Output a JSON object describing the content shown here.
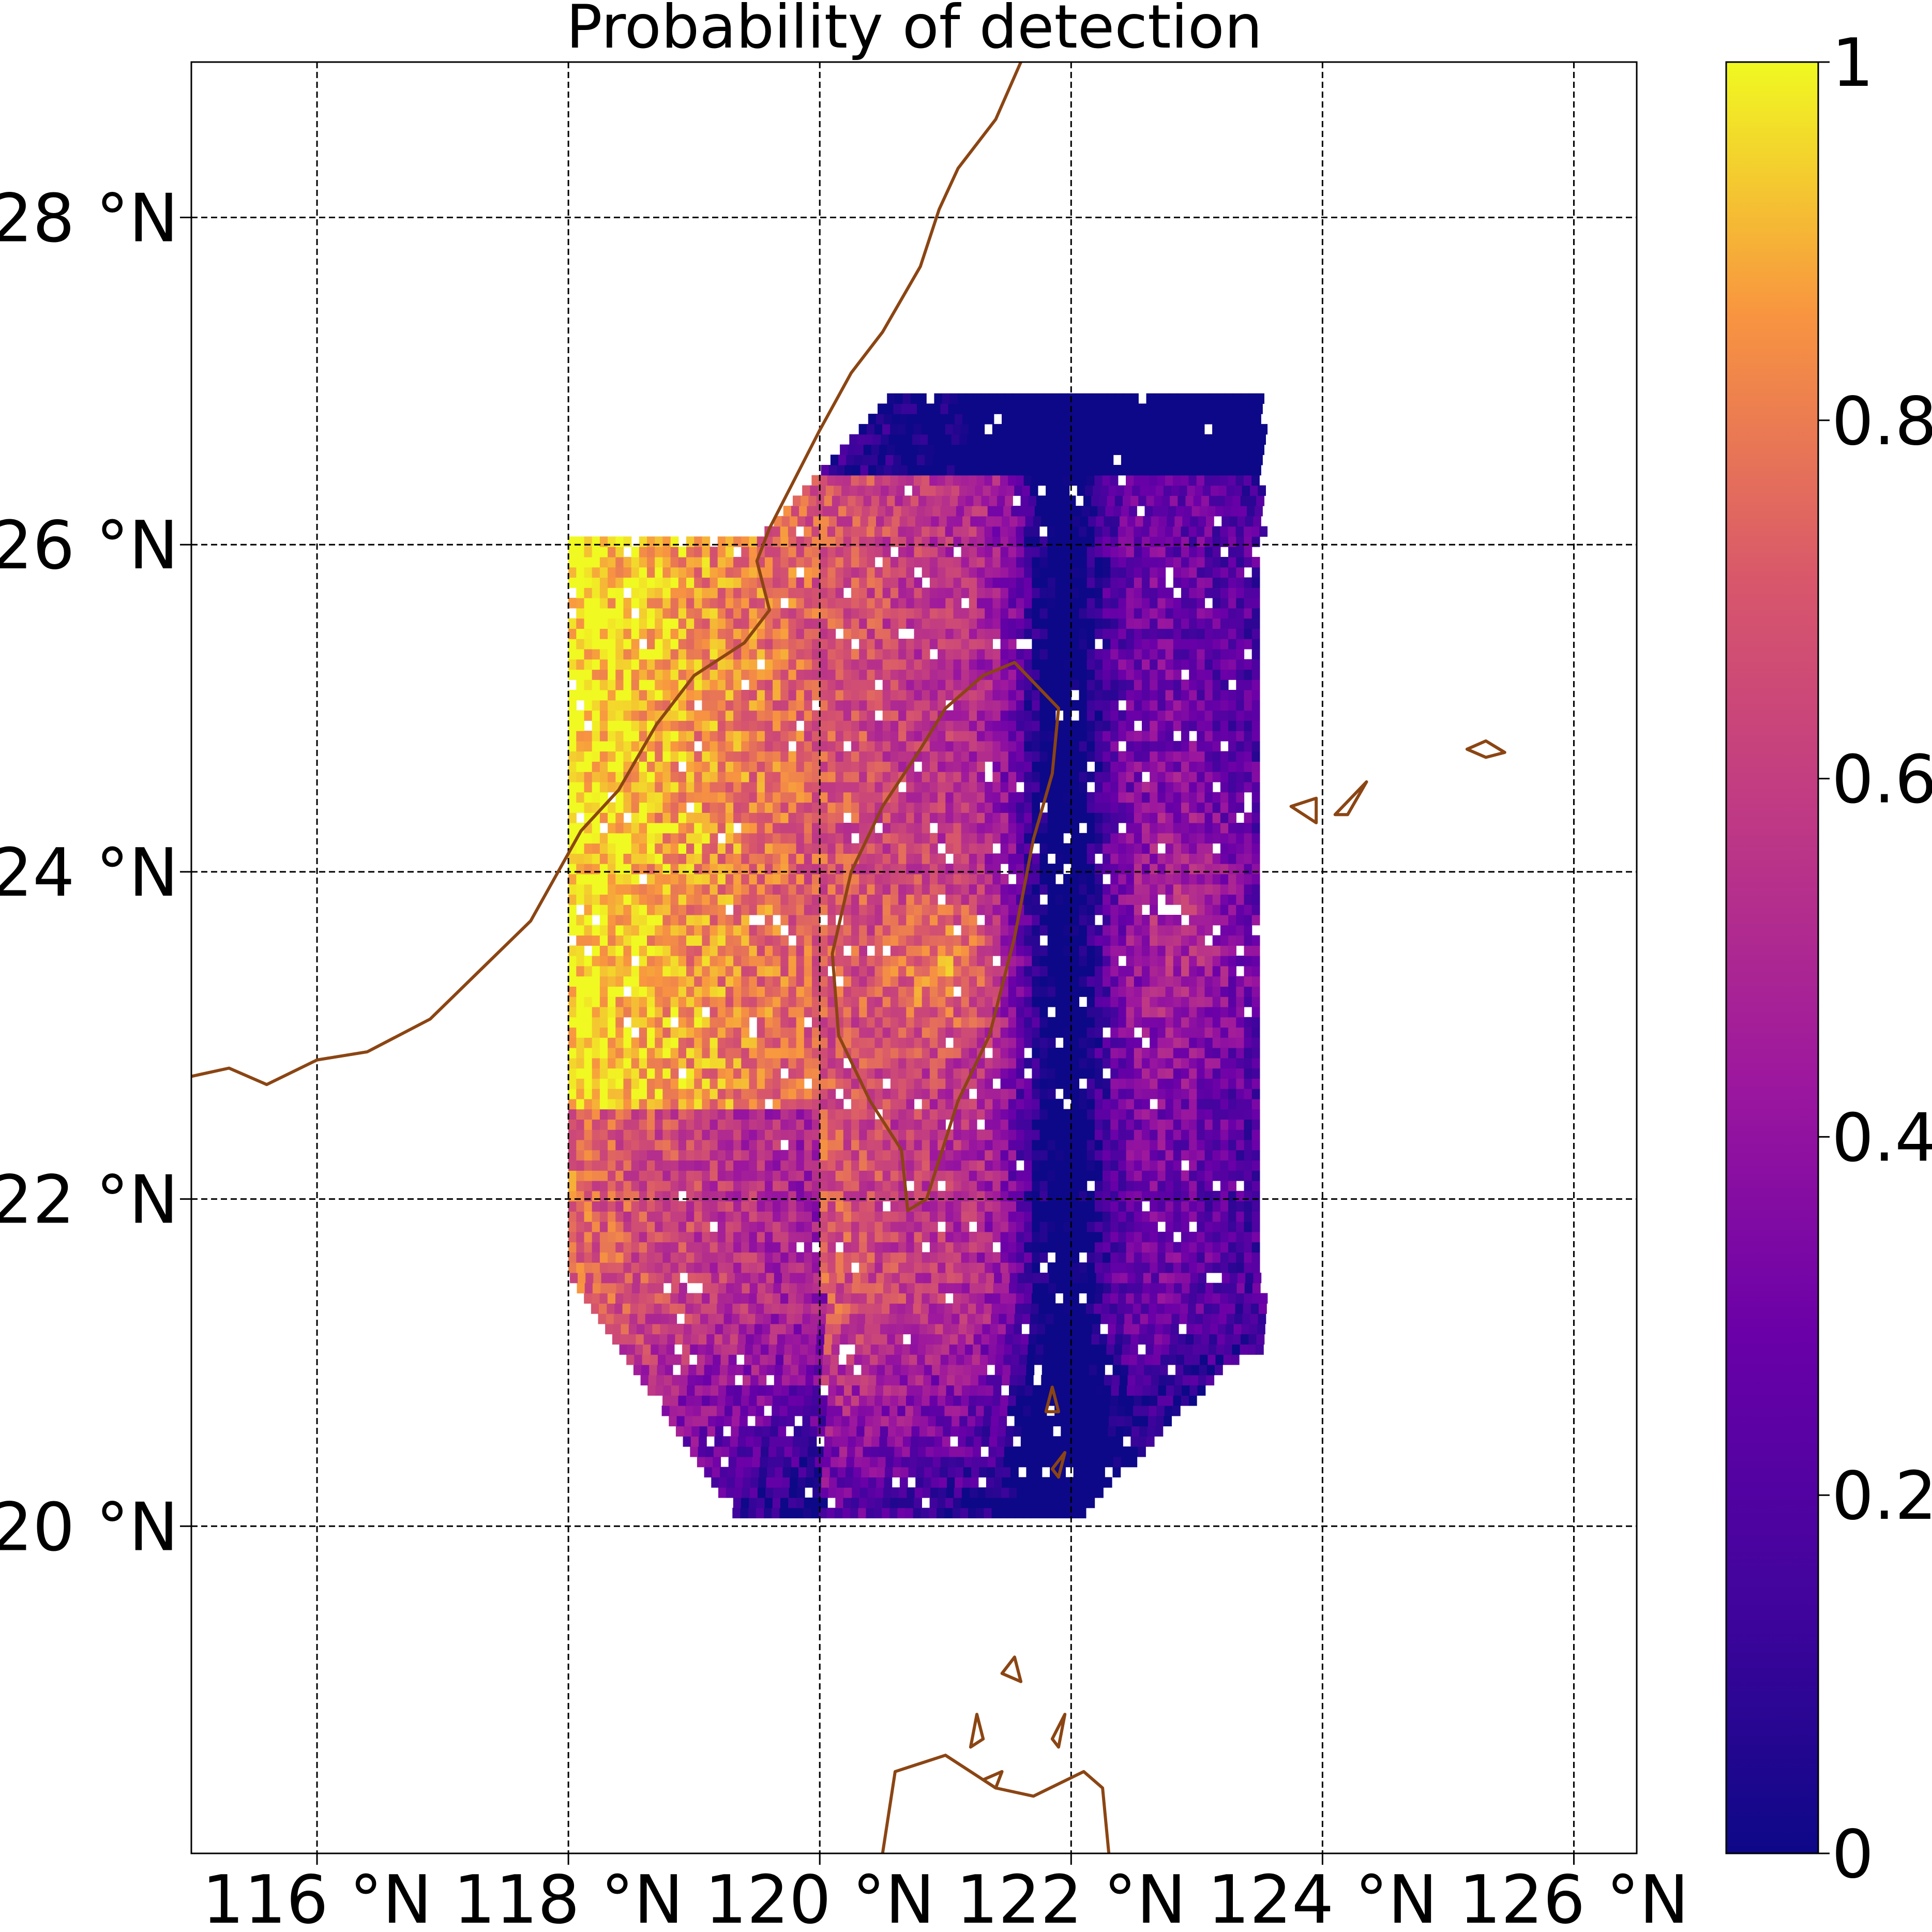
{
  "chart_data": {
    "type": "heatmap",
    "title": "Probability of detection",
    "xlabel": "",
    "ylabel": "",
    "x_ticks": [
      116,
      118,
      120,
      122,
      124,
      126
    ],
    "x_tick_labels": [
      "116 °N",
      "118 °N",
      "120 °N",
      "122 °N",
      "124 °N",
      "126 °N"
    ],
    "y_ticks": [
      20,
      22,
      24,
      26,
      28
    ],
    "y_tick_labels": [
      "20 °N",
      "22 °N",
      "24 °N",
      "26 °N",
      "28 °N"
    ],
    "xlim": [
      115.0,
      126.5
    ],
    "ylim": [
      18.0,
      28.95
    ],
    "grid": true,
    "colormap": "plasma",
    "colorbar": {
      "range": [
        0,
        1
      ],
      "ticks": [
        0,
        0.2,
        0.4,
        0.6,
        0.8,
        1
      ],
      "tick_labels": [
        "0",
        "0.2",
        "0.4",
        "0.6",
        "0.8",
        "1"
      ]
    },
    "coastline_color": "#8B4513",
    "data_region": {
      "lon_range": [
        118.0,
        123.5
      ],
      "lat_range": [
        20.05,
        26.9
      ],
      "pattern": "probability ~0.8–1.0 near the Chinese coast in the west, ~0.3–0.7 over the Taiwan Strait and east of Taiwan, ~0–0.2 along Taiwan's eastern flank, in the northern rows and in the south"
    },
    "coastlines": {
      "china": [
        [
          115,
          22.75
        ],
        [
          115.3,
          22.8
        ],
        [
          115.6,
          22.7
        ],
        [
          116.0,
          22.85
        ],
        [
          116.4,
          22.9
        ],
        [
          116.9,
          23.1
        ],
        [
          117.3,
          23.4
        ],
        [
          117.7,
          23.7
        ],
        [
          118.1,
          24.25
        ],
        [
          118.4,
          24.5
        ],
        [
          118.7,
          24.9
        ],
        [
          119.0,
          25.2
        ],
        [
          119.4,
          25.4
        ],
        [
          119.6,
          25.6
        ],
        [
          119.5,
          25.9
        ],
        [
          119.6,
          26.1
        ],
        [
          119.8,
          26.4
        ],
        [
          120.0,
          26.7
        ],
        [
          120.25,
          27.05
        ],
        [
          120.5,
          27.3
        ],
        [
          120.8,
          27.7
        ],
        [
          120.95,
          28.05
        ],
        [
          121.1,
          28.3
        ],
        [
          121.4,
          28.6
        ],
        [
          121.6,
          28.95
        ]
      ],
      "taiwan": [
        [
          121.55,
          25.28
        ],
        [
          121.9,
          25.0
        ],
        [
          121.85,
          24.6
        ],
        [
          121.7,
          24.2
        ],
        [
          121.55,
          23.6
        ],
        [
          121.35,
          23.0
        ],
        [
          121.1,
          22.6
        ],
        [
          120.85,
          22.0
        ],
        [
          120.7,
          21.93
        ],
        [
          120.65,
          22.3
        ],
        [
          120.4,
          22.6
        ],
        [
          120.15,
          23.0
        ],
        [
          120.1,
          23.5
        ],
        [
          120.25,
          24.0
        ],
        [
          120.5,
          24.4
        ],
        [
          120.8,
          24.75
        ],
        [
          121.0,
          25.0
        ],
        [
          121.3,
          25.2
        ],
        [
          121.55,
          25.28
        ]
      ],
      "luzon": [
        [
          120.5,
          18.0
        ],
        [
          120.6,
          18.5
        ],
        [
          121.0,
          18.6
        ],
        [
          121.4,
          18.4
        ],
        [
          121.7,
          18.35
        ],
        [
          122.1,
          18.5
        ],
        [
          122.25,
          18.4
        ],
        [
          122.3,
          18.0
        ]
      ],
      "islands": [
        [
          [
            125.15,
            24.75
          ],
          [
            125.3,
            24.8
          ],
          [
            125.45,
            24.73
          ],
          [
            125.3,
            24.7
          ],
          [
            125.15,
            24.75
          ]
        ],
        [
          [
            123.75,
            24.4
          ],
          [
            123.95,
            24.45
          ],
          [
            123.95,
            24.3
          ],
          [
            123.75,
            24.4
          ]
        ],
        [
          [
            124.1,
            24.35
          ],
          [
            124.35,
            24.55
          ],
          [
            124.2,
            24.35
          ],
          [
            124.1,
            24.35
          ]
        ],
        [
          [
            121.8,
            20.7
          ],
          [
            121.85,
            20.85
          ],
          [
            121.9,
            20.7
          ],
          [
            121.8,
            20.7
          ]
        ],
        [
          [
            121.9,
            20.3
          ],
          [
            121.95,
            20.45
          ],
          [
            121.85,
            20.35
          ],
          [
            121.9,
            20.3
          ]
        ],
        [
          [
            121.45,
            19.1
          ],
          [
            121.55,
            19.2
          ],
          [
            121.6,
            19.05
          ],
          [
            121.45,
            19.1
          ]
        ],
        [
          [
            121.2,
            18.65
          ],
          [
            121.25,
            18.85
          ],
          [
            121.3,
            18.7
          ],
          [
            121.2,
            18.65
          ]
        ],
        [
          [
            121.85,
            18.7
          ],
          [
            121.95,
            18.85
          ],
          [
            121.9,
            18.65
          ],
          [
            121.85,
            18.7
          ]
        ],
        [
          [
            121.3,
            18.45
          ],
          [
            121.45,
            18.5
          ],
          [
            121.4,
            18.4
          ],
          [
            121.3,
            18.45
          ]
        ]
      ]
    }
  }
}
